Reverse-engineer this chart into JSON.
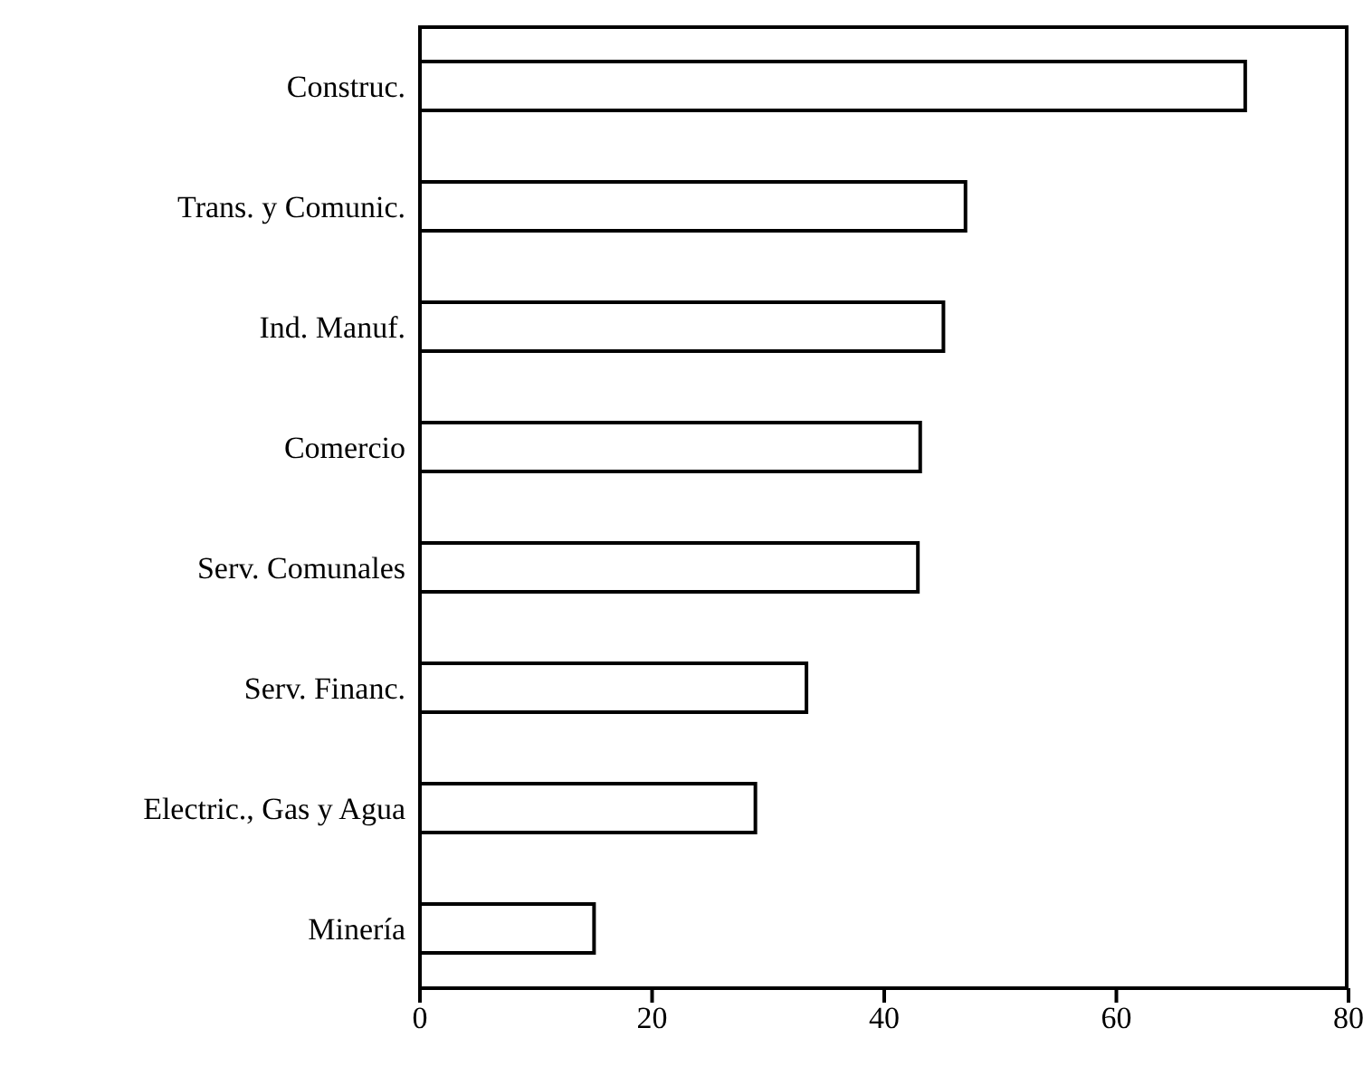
{
  "chart_data": {
    "type": "bar",
    "orientation": "horizontal",
    "categories": [
      "Construc.",
      "Trans. y Comunic.",
      "Ind. Manuf.",
      "Comercio",
      "Serv. Comunales",
      "Serv. Financ.",
      "Electric., Gas y Agua",
      "Minería"
    ],
    "values": [
      71.1,
      47.0,
      45.1,
      43.1,
      42.9,
      33.3,
      28.9,
      15.0
    ],
    "color": "#ffffff",
    "xlim": [
      0,
      80
    ],
    "xticks": [
      0,
      20,
      40,
      60,
      80
    ]
  }
}
